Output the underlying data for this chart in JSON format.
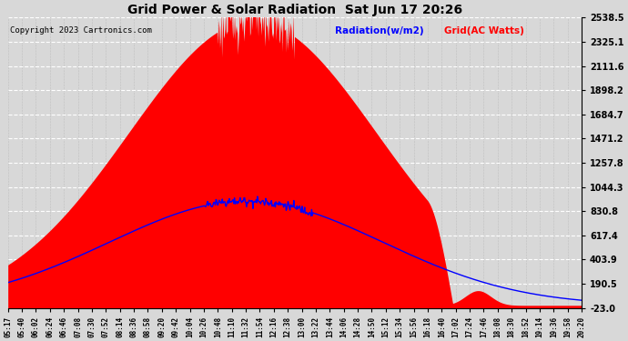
{
  "title": "Grid Power & Solar Radiation  Sat Jun 17 20:26",
  "copyright": "Copyright 2023 Cartronics.com",
  "legend_radiation": "Radiation(w/m2)",
  "legend_grid": "Grid(AC Watts)",
  "yticks": [
    -23.0,
    190.5,
    403.9,
    617.4,
    830.8,
    1044.3,
    1257.8,
    1471.2,
    1684.7,
    1898.2,
    2111.6,
    2325.1,
    2538.5
  ],
  "ymin": -23.0,
  "ymax": 2538.5,
  "bg_color": "#d8d8d8",
  "plot_bg_color": "#d8d8d8",
  "grid_color": "#ffffff",
  "radiation_color": "#0000ff",
  "grid_fill_color": "#ff0000",
  "title_color": "#000000",
  "copyright_color": "#000000",
  "xtick_labels": [
    "05:17",
    "05:40",
    "06:02",
    "06:24",
    "06:46",
    "07:08",
    "07:30",
    "07:52",
    "08:14",
    "08:36",
    "08:58",
    "09:20",
    "09:42",
    "10:04",
    "10:26",
    "10:48",
    "11:10",
    "11:32",
    "11:54",
    "12:16",
    "12:38",
    "13:00",
    "13:22",
    "13:44",
    "14:06",
    "14:28",
    "14:50",
    "15:12",
    "15:34",
    "15:56",
    "16:18",
    "16:40",
    "17:02",
    "17:24",
    "17:46",
    "18:08",
    "18:30",
    "18:52",
    "19:14",
    "19:36",
    "19:58",
    "20:20"
  ]
}
